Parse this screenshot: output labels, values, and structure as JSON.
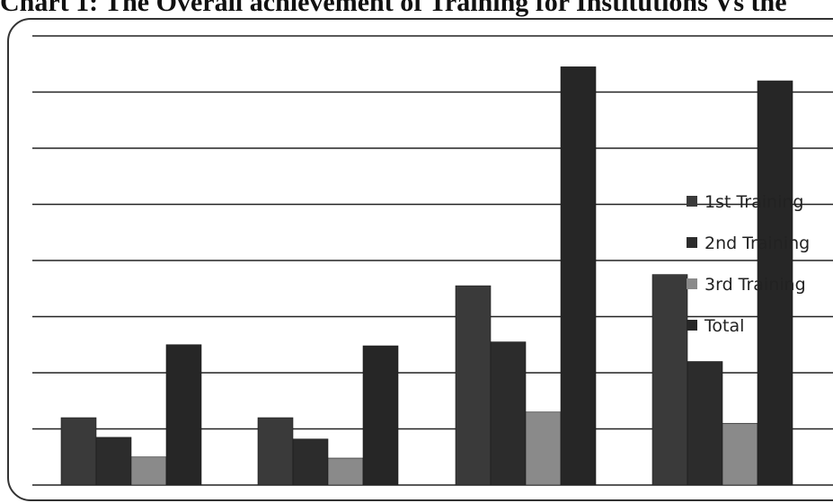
{
  "chart_data": {
    "type": "bar",
    "title": "Chart 1: The Overall achievement of Training for Institutions Vs the",
    "categories": [
      "",
      "",
      "",
      ""
    ],
    "series": [
      {
        "name": "1st Training",
        "color": "#3a3a3a",
        "values": [
          1.2,
          1.2,
          3.55,
          3.75
        ]
      },
      {
        "name": "2nd Training",
        "color": "#2c2c2c",
        "values": [
          0.85,
          0.82,
          2.55,
          2.2
        ]
      },
      {
        "name": "3rd Training",
        "color": "#8a8a8a",
        "values": [
          0.5,
          0.48,
          1.3,
          1.1
        ]
      },
      {
        "name": "Total",
        "color": "#262626",
        "values": [
          2.5,
          2.48,
          7.45,
          7.2
        ]
      }
    ],
    "ylim": [
      0,
      8
    ],
    "grid": true,
    "legend": "right",
    "xlabel": "",
    "ylabel": ""
  }
}
